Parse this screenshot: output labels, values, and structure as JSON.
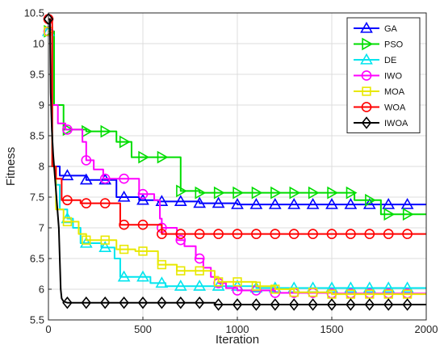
{
  "chart_data": {
    "type": "line",
    "title": "",
    "xlabel": "Iteration",
    "ylabel": "Fitness",
    "xlim": [
      0,
      2000
    ],
    "ylim": [
      5.5,
      10.5
    ],
    "xticks": [
      0,
      500,
      1000,
      1500,
      2000
    ],
    "yticks": [
      5.5,
      6,
      6.5,
      7,
      7.5,
      8,
      8.5,
      9,
      9.5,
      10,
      10.5
    ],
    "grid": true,
    "legend_position": "top-right",
    "series": [
      {
        "name": "GA",
        "color": "#0000ff",
        "marker": "triangle-up",
        "points": [
          [
            0,
            10.2
          ],
          [
            20,
            10.2
          ],
          [
            20,
            8.0
          ],
          [
            60,
            8.0
          ],
          [
            60,
            7.85
          ],
          [
            200,
            7.85
          ],
          [
            200,
            7.78
          ],
          [
            360,
            7.78
          ],
          [
            360,
            7.5
          ],
          [
            480,
            7.5
          ],
          [
            480,
            7.45
          ],
          [
            580,
            7.45
          ],
          [
            580,
            7.43
          ],
          [
            800,
            7.43
          ],
          [
            800,
            7.4
          ],
          [
            1000,
            7.4
          ],
          [
            1000,
            7.38
          ],
          [
            2000,
            7.38
          ]
        ],
        "markers_x": [
          0,
          100,
          200,
          300,
          400,
          500,
          600,
          700,
          800,
          900,
          1000,
          1100,
          1200,
          1300,
          1400,
          1500,
          1600,
          1700,
          1800,
          1900
        ]
      },
      {
        "name": "PSO",
        "color": "#00dd00",
        "marker": "triangle-right",
        "points": [
          [
            0,
            10.2
          ],
          [
            30,
            10.2
          ],
          [
            30,
            9.0
          ],
          [
            80,
            9.0
          ],
          [
            80,
            8.6
          ],
          [
            200,
            8.6
          ],
          [
            200,
            8.57
          ],
          [
            360,
            8.57
          ],
          [
            360,
            8.4
          ],
          [
            440,
            8.4
          ],
          [
            440,
            8.15
          ],
          [
            700,
            8.15
          ],
          [
            700,
            7.6
          ],
          [
            800,
            7.6
          ],
          [
            800,
            7.57
          ],
          [
            1620,
            7.57
          ],
          [
            1620,
            7.45
          ],
          [
            1760,
            7.45
          ],
          [
            1760,
            7.22
          ],
          [
            2000,
            7.22
          ]
        ],
        "markers_x": [
          0,
          100,
          200,
          300,
          400,
          500,
          600,
          700,
          800,
          900,
          1000,
          1100,
          1200,
          1300,
          1400,
          1500,
          1600,
          1700,
          1800,
          1900
        ]
      },
      {
        "name": "DE",
        "color": "#00e5ee",
        "marker": "triangle-up",
        "points": [
          [
            0,
            10.2
          ],
          [
            20,
            10.2
          ],
          [
            20,
            8.0
          ],
          [
            40,
            8.0
          ],
          [
            40,
            7.7
          ],
          [
            60,
            7.7
          ],
          [
            60,
            7.3
          ],
          [
            100,
            7.3
          ],
          [
            100,
            7.15
          ],
          [
            130,
            7.15
          ],
          [
            130,
            7.0
          ],
          [
            170,
            7.0
          ],
          [
            170,
            6.75
          ],
          [
            280,
            6.75
          ],
          [
            280,
            6.68
          ],
          [
            350,
            6.68
          ],
          [
            350,
            6.5
          ],
          [
            380,
            6.5
          ],
          [
            380,
            6.2
          ],
          [
            540,
            6.2
          ],
          [
            540,
            6.1
          ],
          [
            620,
            6.1
          ],
          [
            620,
            6.05
          ],
          [
            1100,
            6.05
          ],
          [
            1100,
            6.02
          ],
          [
            2000,
            6.02
          ]
        ],
        "markers_x": [
          0,
          100,
          200,
          300,
          400,
          500,
          600,
          700,
          800,
          900,
          1000,
          1100,
          1200,
          1300,
          1400,
          1500,
          1600,
          1700,
          1800,
          1900
        ]
      },
      {
        "name": "IWO",
        "color": "#ff00ff",
        "marker": "circle",
        "points": [
          [
            0,
            10.2
          ],
          [
            20,
            10.2
          ],
          [
            20,
            9.0
          ],
          [
            50,
            9.0
          ],
          [
            50,
            8.7
          ],
          [
            90,
            8.7
          ],
          [
            90,
            8.6
          ],
          [
            180,
            8.6
          ],
          [
            180,
            8.4
          ],
          [
            200,
            8.4
          ],
          [
            200,
            8.1
          ],
          [
            240,
            8.1
          ],
          [
            240,
            7.95
          ],
          [
            290,
            7.95
          ],
          [
            290,
            7.8
          ],
          [
            480,
            7.8
          ],
          [
            480,
            7.55
          ],
          [
            560,
            7.55
          ],
          [
            560,
            7.45
          ],
          [
            590,
            7.45
          ],
          [
            590,
            7.15
          ],
          [
            600,
            7.15
          ],
          [
            600,
            7.0
          ],
          [
            680,
            7.0
          ],
          [
            680,
            6.8
          ],
          [
            720,
            6.8
          ],
          [
            720,
            6.7
          ],
          [
            780,
            6.7
          ],
          [
            780,
            6.5
          ],
          [
            820,
            6.5
          ],
          [
            820,
            6.35
          ],
          [
            860,
            6.35
          ],
          [
            860,
            6.2
          ],
          [
            900,
            6.2
          ],
          [
            900,
            6.1
          ],
          [
            940,
            6.1
          ],
          [
            940,
            6.02
          ],
          [
            1000,
            6.02
          ],
          [
            1000,
            5.98
          ],
          [
            1200,
            5.98
          ],
          [
            1200,
            5.94
          ],
          [
            1500,
            5.94
          ],
          [
            1500,
            5.93
          ],
          [
            2000,
            5.93
          ]
        ],
        "markers_x": [
          0,
          100,
          200,
          300,
          400,
          500,
          600,
          700,
          800,
          900,
          1000,
          1100,
          1200,
          1300,
          1400,
          1500,
          1600,
          1700,
          1800,
          1900
        ]
      },
      {
        "name": "MOA",
        "color": "#e8e800",
        "marker": "square",
        "points": [
          [
            0,
            10.2
          ],
          [
            20,
            10.2
          ],
          [
            20,
            8.0
          ],
          [
            40,
            8.0
          ],
          [
            40,
            7.3
          ],
          [
            80,
            7.3
          ],
          [
            80,
            7.1
          ],
          [
            160,
            7.1
          ],
          [
            160,
            6.9
          ],
          [
            200,
            6.9
          ],
          [
            200,
            6.8
          ],
          [
            360,
            6.8
          ],
          [
            360,
            6.65
          ],
          [
            460,
            6.65
          ],
          [
            460,
            6.62
          ],
          [
            580,
            6.62
          ],
          [
            580,
            6.4
          ],
          [
            680,
            6.4
          ],
          [
            680,
            6.3
          ],
          [
            880,
            6.3
          ],
          [
            880,
            6.2
          ],
          [
            900,
            6.2
          ],
          [
            900,
            6.12
          ],
          [
            1100,
            6.12
          ],
          [
            1100,
            6.05
          ],
          [
            1200,
            6.05
          ],
          [
            1200,
            6.0
          ],
          [
            1300,
            6.0
          ],
          [
            1300,
            5.95
          ],
          [
            1500,
            5.95
          ],
          [
            1500,
            5.92
          ],
          [
            2000,
            5.92
          ]
        ],
        "markers_x": [
          0,
          100,
          200,
          300,
          400,
          500,
          600,
          700,
          800,
          900,
          1000,
          1100,
          1200,
          1300,
          1400,
          1500,
          1600,
          1700,
          1800,
          1900
        ]
      },
      {
        "name": "WOA",
        "color": "#ff0000",
        "marker": "circle",
        "points": [
          [
            0,
            10.4
          ],
          [
            20,
            10.4
          ],
          [
            20,
            8.0
          ],
          [
            40,
            8.0
          ],
          [
            40,
            7.8
          ],
          [
            70,
            7.8
          ],
          [
            70,
            7.45
          ],
          [
            170,
            7.45
          ],
          [
            170,
            7.4
          ],
          [
            380,
            7.4
          ],
          [
            380,
            7.05
          ],
          [
            600,
            7.05
          ],
          [
            600,
            6.9
          ],
          [
            2000,
            6.9
          ]
        ],
        "markers_x": [
          0,
          100,
          200,
          300,
          400,
          500,
          600,
          700,
          800,
          900,
          1000,
          1100,
          1200,
          1300,
          1400,
          1500,
          1600,
          1700,
          1800,
          1900
        ]
      },
      {
        "name": "IWOA",
        "color": "#000000",
        "marker": "diamond",
        "points": [
          [
            0,
            10.4
          ],
          [
            8,
            10.4
          ],
          [
            12,
            9.2
          ],
          [
            18,
            8.6
          ],
          [
            25,
            8.2
          ],
          [
            35,
            7.8
          ],
          [
            45,
            7.4
          ],
          [
            55,
            7.0
          ],
          [
            60,
            6.5
          ],
          [
            65,
            6.0
          ],
          [
            70,
            5.85
          ],
          [
            80,
            5.8
          ],
          [
            100,
            5.78
          ],
          [
            880,
            5.78
          ],
          [
            880,
            5.75
          ],
          [
            2000,
            5.75
          ]
        ],
        "markers_x": [
          0,
          100,
          200,
          300,
          400,
          500,
          600,
          700,
          800,
          900,
          1000,
          1100,
          1200,
          1300,
          1400,
          1500,
          1600,
          1700,
          1800,
          1900
        ]
      }
    ]
  }
}
